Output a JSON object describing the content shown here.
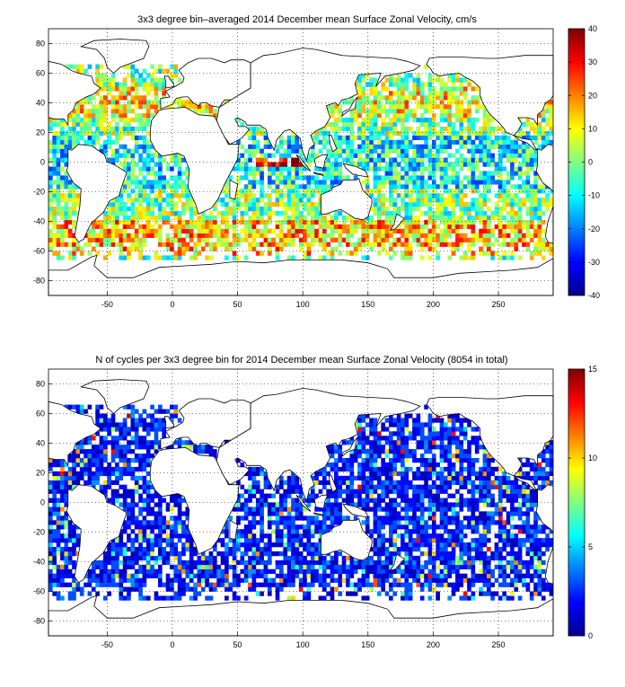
{
  "chart_data": [
    {
      "type": "heatmap",
      "title": "3x3 degree bin–averaged 2014 December mean Surface Zonal Velocity, cm/s",
      "xlim": [
        -95,
        292
      ],
      "ylim": [
        -90,
        90
      ],
      "xticks": [
        -50,
        0,
        50,
        100,
        150,
        200,
        250
      ],
      "yticks": [
        -80,
        -60,
        -40,
        -20,
        0,
        20,
        40,
        60,
        80
      ],
      "grid": "dotted",
      "bin_deg": 3,
      "colorbar": {
        "range": [
          -40,
          40
        ],
        "ticks": [
          40,
          30,
          20,
          10,
          0,
          -10,
          -20,
          -30,
          -40
        ],
        "colormap": "jet",
        "placement": "right"
      }
    },
    {
      "type": "heatmap",
      "title": "N of cycles per 3x3 degree bin for 2014 December mean Surface Zonal Velocity (8054 in total)",
      "xlim": [
        -95,
        292
      ],
      "ylim": [
        -90,
        90
      ],
      "xticks": [
        -50,
        0,
        50,
        100,
        150,
        200,
        250
      ],
      "yticks": [
        -80,
        -60,
        -40,
        -20,
        0,
        20,
        40,
        60,
        80
      ],
      "grid": "dotted",
      "bin_deg": 3,
      "colorbar": {
        "range": [
          0,
          15
        ],
        "ticks": [
          15,
          10,
          5,
          0
        ],
        "colormap": "jet",
        "placement": "right"
      }
    }
  ]
}
